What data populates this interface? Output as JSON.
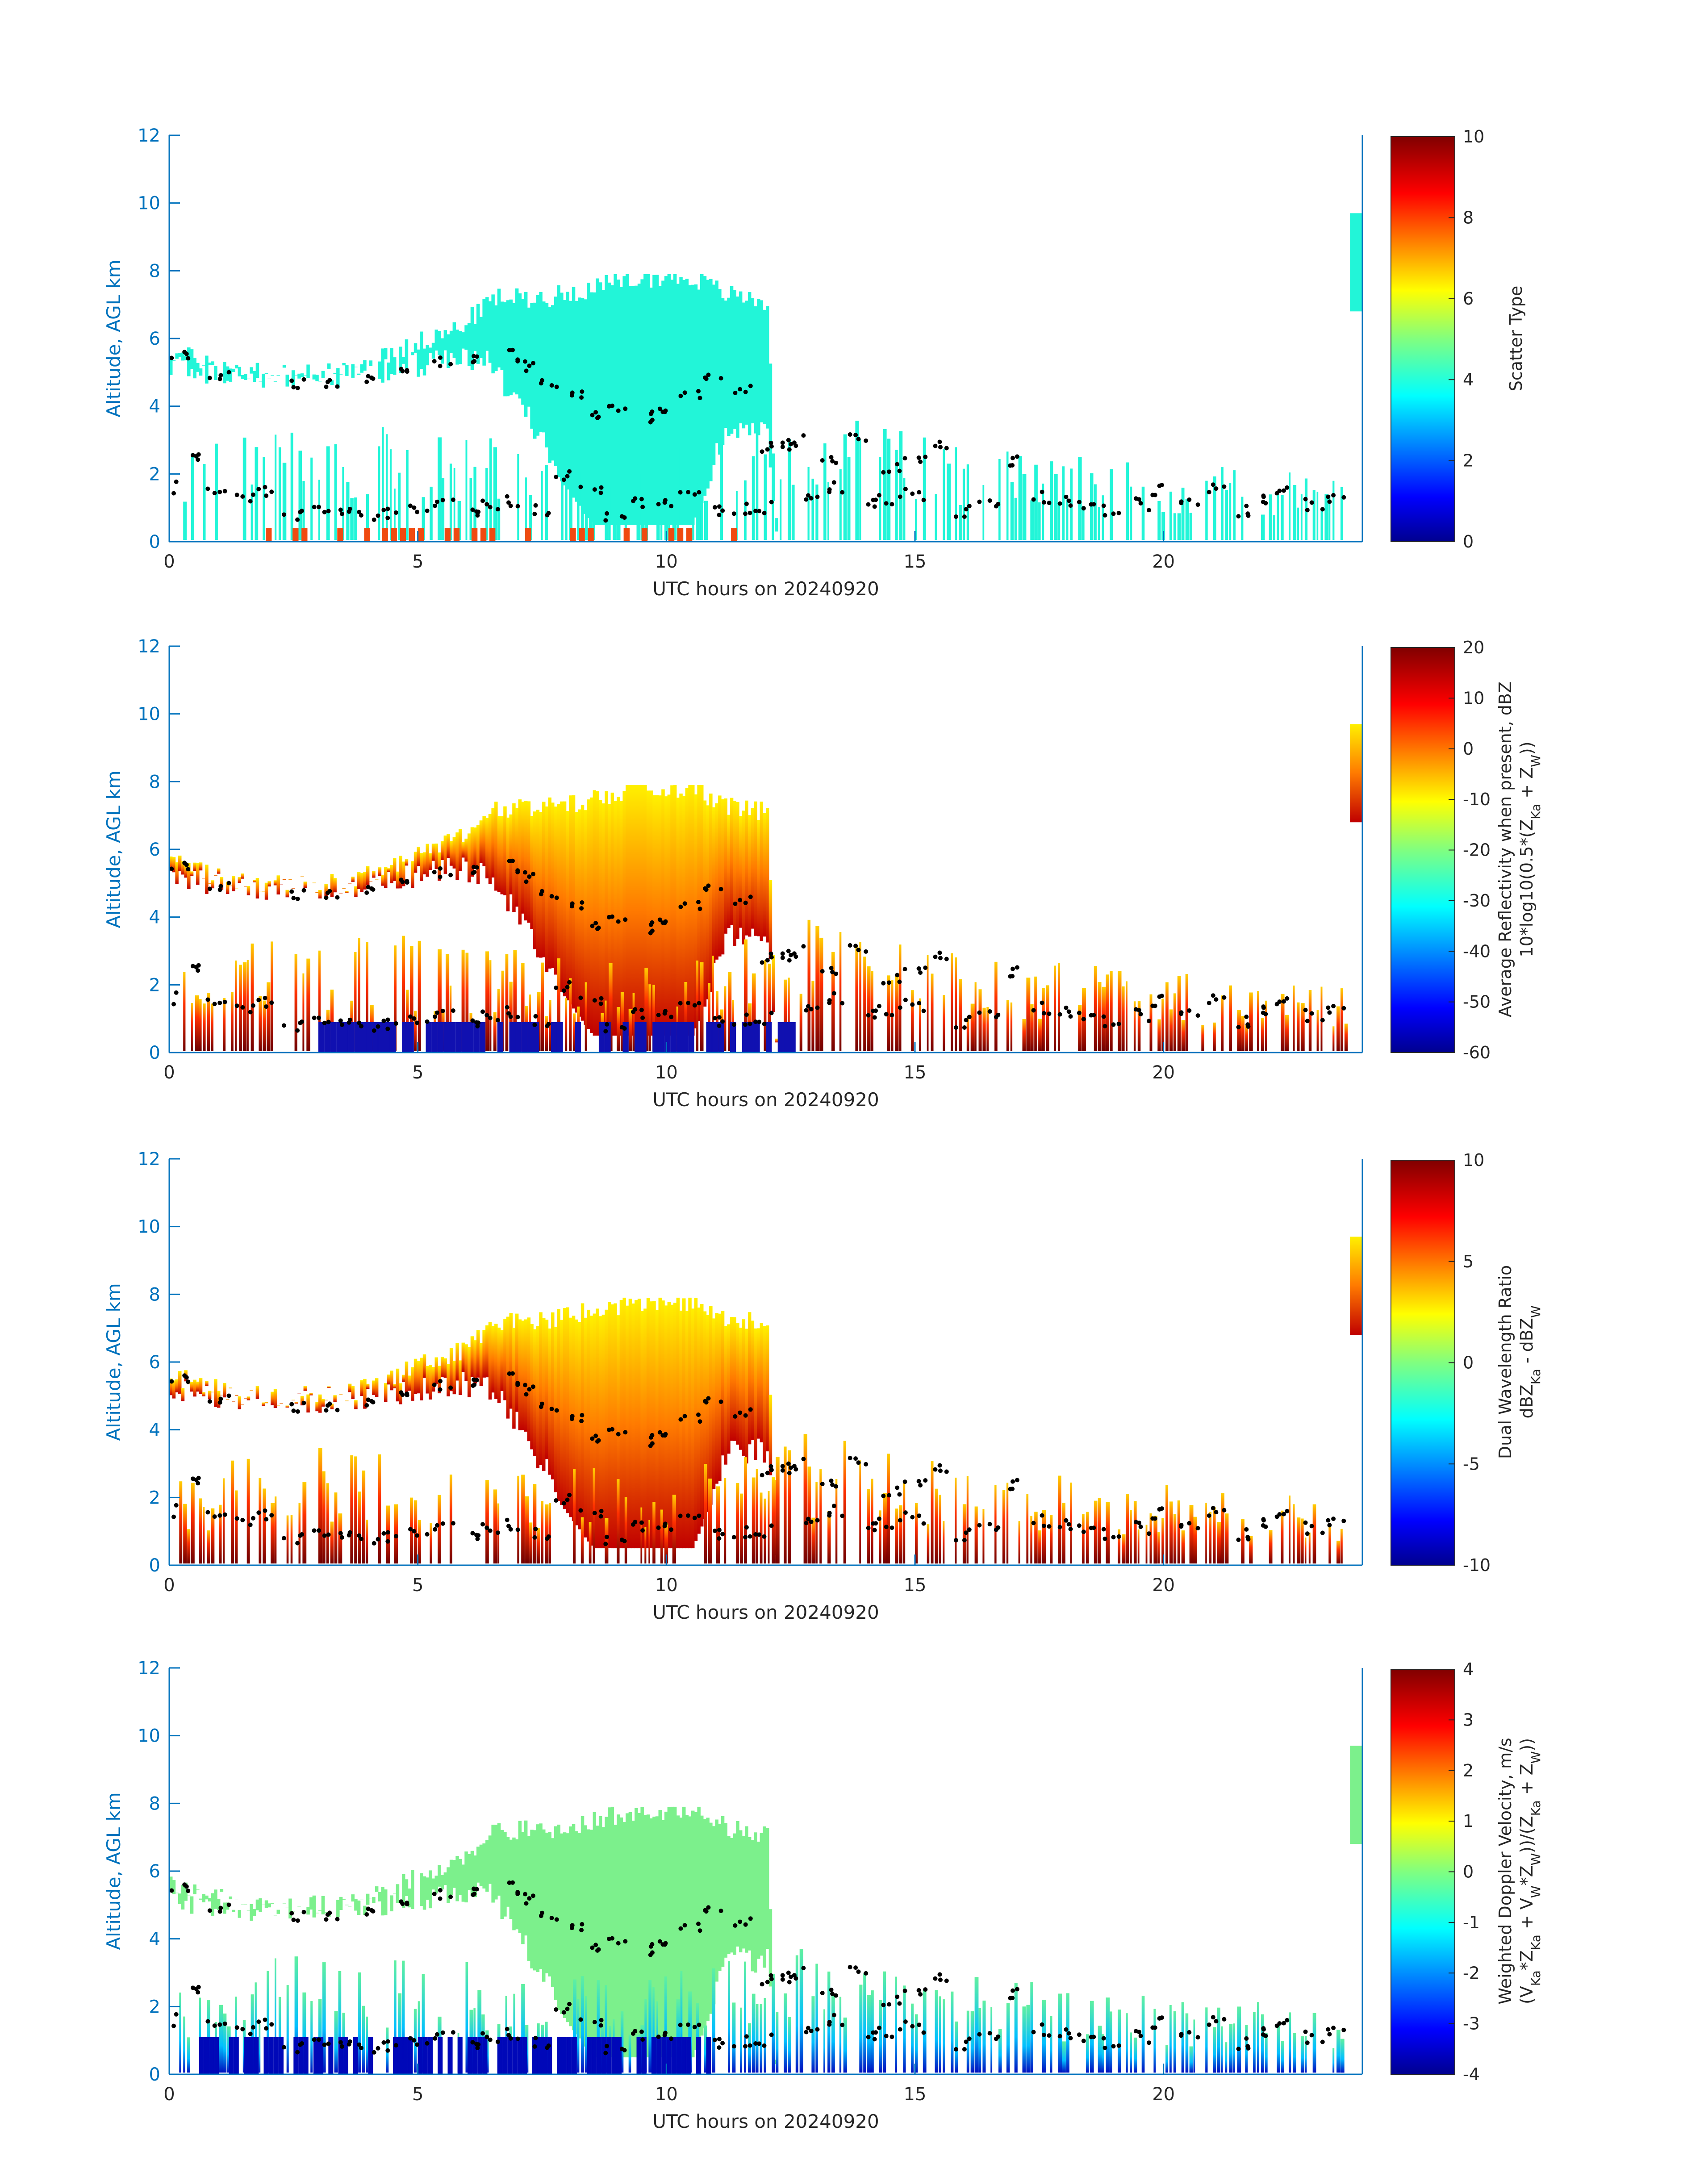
{
  "chart_data": [
    {
      "type": "heatmap",
      "panel": "scatter-type",
      "xlabel": "UTC hours on 20240920",
      "ylabel": "Altitude, AGL km",
      "xlim": [
        0,
        24
      ],
      "ylim": [
        0,
        12
      ],
      "xticks": [
        "0",
        "5",
        "10",
        "15",
        "20"
      ],
      "yticks": [
        "0",
        "2",
        "4",
        "6",
        "8",
        "10",
        "12"
      ],
      "colorbar": {
        "label_lines": [
          "Scatter Type"
        ],
        "range": [
          0,
          10
        ],
        "ticks": [
          "0",
          "2",
          "4",
          "6",
          "8",
          "10"
        ]
      },
      "layers": {
        "upper_cloud": [
          [
            0.0,
            4.8,
            5.6
          ],
          [
            1.5,
            4.5,
            5.0
          ],
          [
            3.5,
            4.5,
            5.0
          ],
          [
            5.0,
            4.8,
            5.9
          ],
          [
            5.8,
            5.0,
            6.3
          ],
          [
            6.5,
            4.8,
            7.2
          ],
          [
            7.5,
            2.5,
            7.2
          ],
          [
            8.5,
            0.5,
            7.5
          ],
          [
            9.5,
            0.5,
            7.8
          ],
          [
            10.5,
            0.5,
            7.8
          ],
          [
            11.2,
            3.0,
            7.3
          ],
          [
            12.0,
            3.0,
            7.1
          ],
          [
            12.2,
            0.0,
            0.0
          ]
        ],
        "low_cloud": [
          [
            0.0,
            0.0,
            2.5
          ],
          [
            2.0,
            0.0,
            3.5
          ],
          [
            5.0,
            0.0,
            3.5
          ],
          [
            8.0,
            0.0,
            3.0
          ],
          [
            10.0,
            0.0,
            3.0
          ],
          [
            13.0,
            0.0,
            4.0
          ],
          [
            16.0,
            0.0,
            2.9
          ],
          [
            20.0,
            0.0,
            2.4
          ],
          [
            23.6,
            0.0,
            2.0
          ],
          [
            23.7,
            0.0,
            0.0
          ]
        ]
      },
      "cloud_base_markers": [
        [
          0.0,
          1.6
        ],
        [
          0.5,
          2.4
        ],
        [
          1.0,
          1.4
        ],
        [
          1.5,
          1.3
        ],
        [
          2.0,
          1.5
        ],
        [
          2.5,
          0.8
        ],
        [
          3.0,
          1.0
        ],
        [
          3.5,
          0.8
        ],
        [
          4.0,
          0.8
        ],
        [
          4.5,
          0.8
        ],
        [
          5.0,
          1.0
        ],
        [
          5.5,
          1.2
        ],
        [
          6.0,
          0.9
        ],
        [
          6.5,
          1.1
        ],
        [
          7.0,
          1.2
        ],
        [
          7.5,
          0.9
        ],
        [
          8.0,
          2.0
        ],
        [
          8.5,
          1.5
        ],
        [
          9.0,
          0.8
        ],
        [
          9.5,
          1.2
        ],
        [
          10.0,
          1.2
        ],
        [
          10.5,
          1.4
        ],
        [
          11.0,
          0.9
        ],
        [
          11.5,
          1.0
        ],
        [
          12.0,
          1.0
        ],
        [
          12.5,
          2.8
        ],
        [
          13.0,
          1.2
        ],
        [
          13.5,
          1.6
        ],
        [
          14.0,
          1.1
        ],
        [
          14.5,
          1.2
        ],
        [
          15.0,
          1.4
        ],
        [
          15.5,
          2.8
        ],
        [
          16.0,
          0.9
        ],
        [
          16.5,
          1.2
        ],
        [
          17.0,
          2.4
        ],
        [
          17.5,
          1.3
        ],
        [
          18.0,
          1.2
        ],
        [
          18.5,
          1.0
        ],
        [
          19.0,
          0.9
        ],
        [
          19.5,
          1.1
        ],
        [
          20.0,
          1.5
        ],
        [
          20.5,
          1.1
        ],
        [
          21.0,
          1.6
        ],
        [
          21.5,
          0.9
        ],
        [
          22.0,
          1.2
        ],
        [
          22.5,
          1.6
        ],
        [
          23.0,
          1.1
        ],
        [
          23.5,
          1.3
        ]
      ],
      "upper_base_markers": [
        [
          0.2,
          5.5
        ],
        [
          1.0,
          4.9
        ],
        [
          2.5,
          4.7
        ],
        [
          3.2,
          4.7
        ],
        [
          4.0,
          4.8
        ],
        [
          4.8,
          5.1
        ],
        [
          5.5,
          5.3
        ],
        [
          6.2,
          5.4
        ],
        [
          6.8,
          5.5
        ],
        [
          7.3,
          5.2
        ],
        [
          7.7,
          4.7
        ],
        [
          8.1,
          4.3
        ],
        [
          8.5,
          3.7
        ],
        [
          9.0,
          3.9
        ],
        [
          9.5,
          3.7
        ],
        [
          10.0,
          4.0
        ],
        [
          10.5,
          4.4
        ],
        [
          11.0,
          4.9
        ],
        [
          11.5,
          4.5
        ],
        [
          12.0,
          2.8
        ],
        [
          12.6,
          3.0
        ],
        [
          13.2,
          2.5
        ],
        [
          13.8,
          3.0
        ],
        [
          14.5,
          2.2
        ],
        [
          15.0,
          2.5
        ]
      ]
    },
    {
      "type": "heatmap",
      "panel": "average-reflectivity",
      "xlabel": "UTC hours on 20240920",
      "ylabel": "Altitude, AGL km",
      "xlim": [
        0,
        24
      ],
      "ylim": [
        0,
        12
      ],
      "xticks": [
        "0",
        "5",
        "10",
        "15",
        "20"
      ],
      "yticks": [
        "0",
        "2",
        "4",
        "6",
        "8",
        "10",
        "12"
      ],
      "colorbar": {
        "label_lines": [
          "Average Reflectivity when present, dBZ",
          "10*log10(0.5*(Z_Ka + Z_W))"
        ],
        "range": [
          -60,
          20
        ],
        "ticks": [
          "-60",
          "-50",
          "-40",
          "-30",
          "-20",
          "-10",
          "0",
          "10",
          "20"
        ]
      }
    },
    {
      "type": "heatmap",
      "panel": "dual-wavelength-ratio",
      "xlabel": "UTC hours on 20240920",
      "ylabel": "Altitude, AGL km",
      "xlim": [
        0,
        24
      ],
      "ylim": [
        0,
        12
      ],
      "xticks": [
        "0",
        "5",
        "10",
        "15",
        "20"
      ],
      "yticks": [
        "0",
        "2",
        "4",
        "6",
        "8",
        "10",
        "12"
      ],
      "colorbar": {
        "label_lines": [
          "Dual Wavelength Ratio",
          "dBZ_Ka - dBZ_W"
        ],
        "range": [
          -10,
          10
        ],
        "ticks": [
          "-10",
          "-5",
          "0",
          "5",
          "10"
        ]
      }
    },
    {
      "type": "heatmap",
      "panel": "weighted-doppler-velocity",
      "xlabel": "UTC hours on 20240920",
      "ylabel": "Altitude, AGL km",
      "xlim": [
        0,
        24
      ],
      "ylim": [
        0,
        12
      ],
      "xticks": [
        "0",
        "5",
        "10",
        "15",
        "20"
      ],
      "yticks": [
        "0",
        "2",
        "4",
        "6",
        "8",
        "10",
        "12"
      ],
      "colorbar": {
        "label_lines": [
          "Weighted Doppler Velocity, m/s",
          "(V_Ka*Z_Ka + V_W*Z_W))/(Z_Ka + Z_W))"
        ],
        "range": [
          -4,
          4
        ],
        "ticks": [
          "-4",
          "-3",
          "-2",
          "-1",
          "0",
          "1",
          "2",
          "3",
          "4"
        ]
      }
    }
  ],
  "colors": {
    "axis": "#0072bd",
    "cloud_scatter": "#22f5d8",
    "marker": "#000000",
    "insect_scatter": "#f04a10"
  }
}
